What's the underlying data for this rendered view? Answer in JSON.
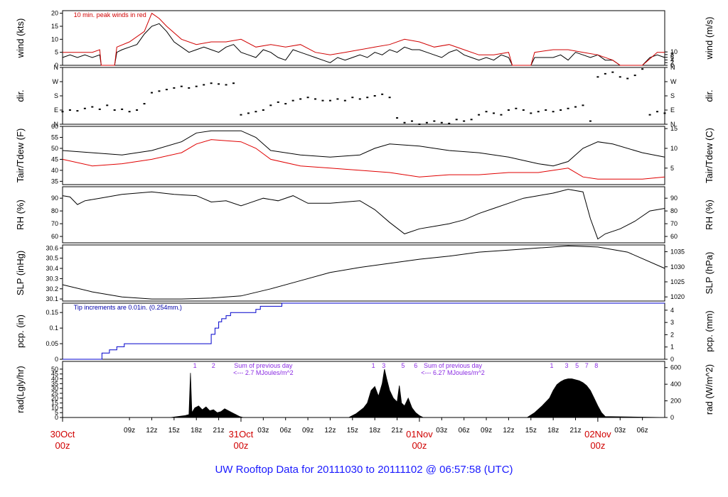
{
  "title": "UW Rooftop Data for 20111030  to  20111102 @ 06:57:58  (UTC)",
  "time_axis": {
    "hours": 81,
    "hour_ticks": [
      {
        "h": 9,
        "label": "09z"
      },
      {
        "h": 12,
        "label": "12z"
      },
      {
        "h": 15,
        "label": "15z"
      },
      {
        "h": 18,
        "label": "18z"
      },
      {
        "h": 21,
        "label": "21z"
      },
      {
        "h": 27,
        "label": "03z"
      },
      {
        "h": 30,
        "label": "06z"
      },
      {
        "h": 33,
        "label": "09z"
      },
      {
        "h": 36,
        "label": "12z"
      },
      {
        "h": 39,
        "label": "15z"
      },
      {
        "h": 42,
        "label": "18z"
      },
      {
        "h": 45,
        "label": "21z"
      },
      {
        "h": 51,
        "label": "03z"
      },
      {
        "h": 54,
        "label": "06z"
      },
      {
        "h": 57,
        "label": "09z"
      },
      {
        "h": 60,
        "label": "12z"
      },
      {
        "h": 63,
        "label": "15z"
      },
      {
        "h": 66,
        "label": "18z"
      },
      {
        "h": 69,
        "label": "21z"
      },
      {
        "h": 75,
        "label": "03z"
      },
      {
        "h": 78,
        "label": "06z"
      }
    ],
    "day_labels": [
      {
        "h": 0,
        "date": "30Oct",
        "time": "00z"
      },
      {
        "h": 24,
        "date": "31Oct",
        "time": "00z"
      },
      {
        "h": 48,
        "date": "01Nov",
        "time": "00z"
      },
      {
        "h": 72,
        "date": "02Nov",
        "time": "00z"
      }
    ]
  },
  "chart_data": [
    {
      "type": "line",
      "id": "wind",
      "ylabel": "wind (kts)",
      "ylabel_right": "wind (m/s)",
      "ylim": [
        0,
        21
      ],
      "yticks": [
        0,
        5,
        10,
        15,
        20
      ],
      "yticks_right": [
        0,
        2,
        4,
        6,
        8,
        10
      ],
      "right_scale": 1.9438,
      "annotation": "10 min. peak winds in red",
      "series": [
        {
          "name": "wind",
          "color": "#000000",
          "x": [
            0,
            1,
            2,
            3,
            4,
            5,
            5.2,
            7,
            7.3,
            8,
            9,
            10,
            11,
            12,
            13,
            14,
            15,
            16,
            17,
            18,
            19,
            20,
            21,
            22,
            23,
            24,
            25,
            26,
            27,
            28,
            29,
            30,
            31,
            32,
            33,
            34,
            35,
            36,
            37,
            38,
            39,
            40,
            41,
            42,
            43,
            44,
            45,
            46,
            47,
            48,
            49,
            50,
            51,
            52,
            53,
            54,
            55,
            56,
            57,
            58,
            59,
            60,
            60.5,
            61,
            62,
            63,
            63.5,
            66,
            67,
            68,
            69,
            70,
            71,
            72,
            73,
            74,
            75,
            76,
            77,
            78,
            79,
            80,
            81
          ],
          "y": [
            3,
            4,
            3,
            4,
            3,
            4,
            0,
            0,
            5,
            6,
            7,
            8,
            12,
            15,
            16,
            13,
            9,
            7,
            5,
            6,
            7,
            6,
            5,
            7,
            8,
            5,
            4,
            3,
            6,
            5,
            3,
            2,
            6,
            5,
            4,
            3,
            2,
            1,
            3,
            2,
            3,
            4,
            3,
            5,
            4,
            6,
            5,
            7,
            6,
            6,
            5,
            4,
            3,
            5,
            6,
            4,
            3,
            2,
            3,
            2,
            4,
            3,
            0,
            0,
            0,
            0,
            3,
            3,
            4,
            2,
            5,
            4,
            3,
            4,
            2,
            2,
            0,
            0,
            0,
            0,
            3,
            4,
            3
          ]
        },
        {
          "name": "10 min. peak",
          "color": "#d00000",
          "x": [
            0,
            2,
            4,
            5,
            5.2,
            7,
            7.3,
            9,
            11,
            12,
            13,
            14,
            16,
            18,
            20,
            22,
            24,
            26,
            28,
            30,
            32,
            34,
            36,
            38,
            40,
            42,
            44,
            46,
            48,
            50,
            52,
            54,
            56,
            58,
            60,
            60.5,
            63,
            63.5,
            66,
            68,
            70,
            72,
            74,
            75,
            78,
            80,
            81
          ],
          "y": [
            5,
            5,
            5,
            6,
            0,
            0,
            7,
            9,
            13,
            20,
            18,
            15,
            10,
            8,
            9,
            9,
            10,
            7,
            8,
            7,
            8,
            5,
            4,
            5,
            6,
            7,
            8,
            10,
            9,
            7,
            8,
            6,
            4,
            4,
            5,
            0,
            0,
            5,
            6,
            6,
            5,
            4,
            2,
            0,
            0,
            5,
            5
          ]
        }
      ]
    },
    {
      "type": "scatter",
      "id": "dir",
      "ylabel": "dir.",
      "ylabel_right": "dir.",
      "ylim": [
        0,
        360
      ],
      "ytick_values": [
        0,
        90,
        180,
        270,
        360
      ],
      "ytick_labels": [
        "N",
        "E",
        "S",
        "W",
        "N"
      ],
      "x": [
        0,
        1,
        2,
        3,
        4,
        5,
        6,
        7,
        8,
        9,
        10,
        11,
        12,
        13,
        14,
        15,
        16,
        17,
        18,
        19,
        20,
        21,
        22,
        23,
        24,
        25,
        26,
        27,
        28,
        29,
        30,
        31,
        32,
        33,
        34,
        35,
        36,
        37,
        38,
        39,
        40,
        41,
        42,
        43,
        44,
        45,
        46,
        47,
        48,
        49,
        50,
        51,
        52,
        53,
        54,
        55,
        56,
        57,
        58,
        59,
        60,
        61,
        62,
        63,
        64,
        65,
        66,
        67,
        68,
        69,
        70,
        71,
        72,
        73,
        74,
        75,
        76,
        77,
        78,
        79,
        80,
        81
      ],
      "y": [
        80,
        90,
        85,
        100,
        110,
        95,
        120,
        90,
        95,
        80,
        90,
        130,
        200,
        210,
        220,
        230,
        240,
        230,
        240,
        250,
        260,
        255,
        250,
        260,
        60,
        70,
        80,
        90,
        120,
        140,
        130,
        150,
        160,
        170,
        160,
        150,
        150,
        160,
        150,
        170,
        160,
        170,
        180,
        190,
        170,
        40,
        10,
        20,
        0,
        10,
        20,
        10,
        5,
        30,
        20,
        30,
        60,
        80,
        70,
        60,
        90,
        100,
        90,
        70,
        80,
        90,
        80,
        90,
        100,
        110,
        120,
        20,
        300,
        320,
        330,
        300,
        290,
        310,
        350,
        60,
        80,
        70
      ]
    },
    {
      "type": "line",
      "id": "temp",
      "ylabel": "Tair/Tdew (F)",
      "ylabel_right": "Tair/Tdew (C)",
      "ylim": [
        33.5,
        60
      ],
      "yticks": [
        35,
        40,
        45,
        50,
        55,
        60
      ],
      "yticks_right": [
        5,
        10,
        15
      ],
      "right_offset": 32,
      "right_scale": 1.8,
      "series": [
        {
          "name": "Tair",
          "color": "#000000",
          "x": [
            0,
            4,
            8,
            12,
            16,
            18,
            20,
            24,
            26,
            28,
            32,
            36,
            40,
            42,
            44,
            48,
            52,
            56,
            60,
            64,
            66,
            68,
            70,
            72,
            74,
            78,
            81
          ],
          "y": [
            49,
            48,
            47,
            49,
            53,
            57,
            58,
            58,
            55,
            49,
            47,
            46,
            47,
            50,
            52,
            51,
            49,
            48,
            46,
            43,
            42,
            44,
            50,
            53,
            52,
            48,
            46
          ]
        },
        {
          "name": "Tdew",
          "color": "#e00000",
          "x": [
            0,
            4,
            8,
            12,
            16,
            18,
            20,
            24,
            26,
            28,
            32,
            36,
            40,
            44,
            48,
            52,
            56,
            60,
            64,
            66,
            68,
            70,
            72,
            74,
            78,
            81
          ],
          "y": [
            45,
            42,
            43,
            45,
            48,
            52,
            54,
            53,
            50,
            45,
            42,
            41,
            40,
            39,
            37,
            38,
            38,
            39,
            39,
            40,
            41,
            37,
            36,
            36,
            36,
            37
          ]
        }
      ]
    },
    {
      "type": "line",
      "id": "rh",
      "ylabel": "RH (%)",
      "ylabel_right": "RH (%)",
      "ylim": [
        55,
        99
      ],
      "yticks": [
        60,
        70,
        80,
        90
      ],
      "yticks_right": [
        60,
        70,
        80,
        90
      ],
      "series": [
        {
          "name": "RH",
          "color": "#000000",
          "x": [
            0,
            1,
            2,
            3,
            5,
            8,
            12,
            15,
            18,
            20,
            22,
            24,
            25,
            27,
            29,
            31,
            33,
            36,
            38,
            40,
            42,
            44,
            46,
            48,
            50,
            52,
            54,
            56,
            58,
            60,
            62,
            64,
            66,
            68,
            70,
            71,
            72,
            73,
            75,
            77,
            79,
            81
          ],
          "y": [
            92,
            91,
            85,
            88,
            90,
            93,
            95,
            93,
            92,
            87,
            88,
            84,
            86,
            90,
            88,
            92,
            86,
            86,
            87,
            88,
            81,
            71,
            62,
            66,
            68,
            70,
            73,
            78,
            82,
            86,
            90,
            92,
            94,
            97,
            95,
            74,
            58,
            62,
            66,
            72,
            80,
            82
          ]
        }
      ]
    },
    {
      "type": "line",
      "id": "slp",
      "ylabel": "SLP (inHg)",
      "ylabel_right": "SLP (hPa)",
      "ylim": [
        30.08,
        30.63
      ],
      "yticks": [
        30.1,
        30.2,
        30.3,
        30.4,
        30.5,
        30.6
      ],
      "yticks_right": [
        1020,
        1025,
        1030,
        1035
      ],
      "right_scale": 33.8639,
      "series": [
        {
          "name": "SLP",
          "color": "#000000",
          "x": [
            0,
            4,
            8,
            12,
            16,
            20,
            24,
            28,
            32,
            36,
            40,
            44,
            48,
            52,
            56,
            60,
            64,
            68,
            72,
            76,
            81
          ],
          "y": [
            30.24,
            30.17,
            30.12,
            30.1,
            30.1,
            30.11,
            30.13,
            30.2,
            30.28,
            30.36,
            30.41,
            30.45,
            30.49,
            30.52,
            30.56,
            30.58,
            30.6,
            30.62,
            30.61,
            30.56,
            30.4
          ]
        }
      ]
    },
    {
      "type": "line",
      "id": "pcp",
      "ylabel": "pcp. (in)",
      "ylabel_right": "pcp. (mm)",
      "ylim": [
        0,
        0.18
      ],
      "yticks": [
        0,
        0.05,
        0.1,
        0.15
      ],
      "yticks_right": [
        0,
        1,
        2,
        3,
        4
      ],
      "right_scale": 25.4,
      "annotation": "Tip increments are 0.01in. (0.254mm.)",
      "series": [
        {
          "name": "pcp",
          "color": "#0000cc",
          "x": [
            0,
            5.3,
            5.3,
            6.3,
            6.3,
            7.3,
            7.3,
            8.3,
            8.3,
            20,
            20,
            20.5,
            20.5,
            21,
            21,
            21.4,
            21.4,
            22,
            22,
            22.6,
            22.6,
            26,
            26,
            26.6,
            26.6,
            27,
            27,
            27.6,
            27.6,
            28,
            28,
            28.4,
            28.4,
            29,
            29,
            29.5,
            29.5,
            81
          ],
          "y": [
            0,
            0,
            0.02,
            0.02,
            0.03,
            0.03,
            0.04,
            0.04,
            0.05,
            0.05,
            0.08,
            0.08,
            0.1,
            0.1,
            0.12,
            0.12,
            0.13,
            0.13,
            0.14,
            0.14,
            0.15,
            0.15,
            0.16,
            0.16,
            0.17,
            0.17,
            0.17,
            0.17,
            0.17,
            0.17,
            0.17,
            0.17,
            0.17,
            0.17,
            0.17,
            0.17,
            0.18,
            0.18
          ]
        }
      ]
    },
    {
      "type": "area",
      "id": "rad",
      "ylabel": "rad(Lgly/hr)",
      "ylabel_right": "rad (W/m^2)",
      "ylim": [
        0,
        58
      ],
      "yticks": [
        0,
        5,
        10,
        15,
        20,
        25,
        30,
        35,
        40,
        45,
        50
      ],
      "yticks_right": [
        0,
        200,
        400,
        600
      ],
      "right_scale": 11.63,
      "day_notes": [
        {
          "h": 27,
          "line1": "Sum of previous day",
          "line2": "<--- 2.7 MJoules/m^2"
        },
        {
          "h": 52.5,
          "line1": "Sum of previous day",
          "line2": "<--- 6.27 MJoules/m^2"
        }
      ],
      "hour_markers": [
        {
          "h": 17.8,
          "label": "1"
        },
        {
          "h": 20.3,
          "label": "2"
        },
        {
          "h": 41.8,
          "label": "1"
        },
        {
          "h": 43.2,
          "label": "3"
        },
        {
          "h": 45.8,
          "label": "5"
        },
        {
          "h": 47.5,
          "label": "6"
        },
        {
          "h": 65.8,
          "label": "1"
        },
        {
          "h": 67.8,
          "label": "3"
        },
        {
          "h": 69.2,
          "label": "5"
        },
        {
          "h": 70.5,
          "label": "7"
        },
        {
          "h": 71.8,
          "label": "8"
        }
      ],
      "series": [
        {
          "name": "rad",
          "color": "#000000",
          "x": [
            0,
            14.5,
            15.5,
            16.5,
            17.0,
            17.2,
            17.4,
            17.8,
            18.3,
            18.8,
            19.3,
            19.8,
            20.3,
            20.8,
            21.3,
            21.8,
            22.3,
            22.8,
            23.3,
            23.8,
            24.3,
            38.5,
            39.5,
            40.5,
            41.0,
            41.5,
            42.0,
            42.5,
            43.0,
            43.3,
            43.6,
            44.0,
            44.5,
            45.0,
            45.3,
            45.6,
            46.0,
            46.5,
            47.0,
            47.5,
            48.0,
            48.5,
            62.5,
            63.5,
            64.5,
            65.5,
            66.0,
            66.5,
            67.0,
            67.5,
            68.0,
            68.5,
            69.0,
            69.5,
            70.0,
            70.5,
            71.0,
            71.5,
            72.0,
            72.5,
            73.0,
            81
          ],
          "y": [
            0,
            0,
            1,
            2,
            3,
            46,
            5,
            10,
            12,
            8,
            11,
            7,
            8,
            5,
            6,
            9,
            7,
            5,
            3,
            1,
            0,
            0,
            4,
            10,
            15,
            28,
            32,
            22,
            35,
            50,
            40,
            28,
            20,
            16,
            33,
            15,
            12,
            20,
            10,
            5,
            2,
            0,
            0,
            5,
            12,
            20,
            28,
            34,
            37,
            39,
            40,
            40,
            39,
            38,
            36,
            33,
            28,
            20,
            12,
            5,
            1,
            0
          ]
        }
      ]
    }
  ]
}
